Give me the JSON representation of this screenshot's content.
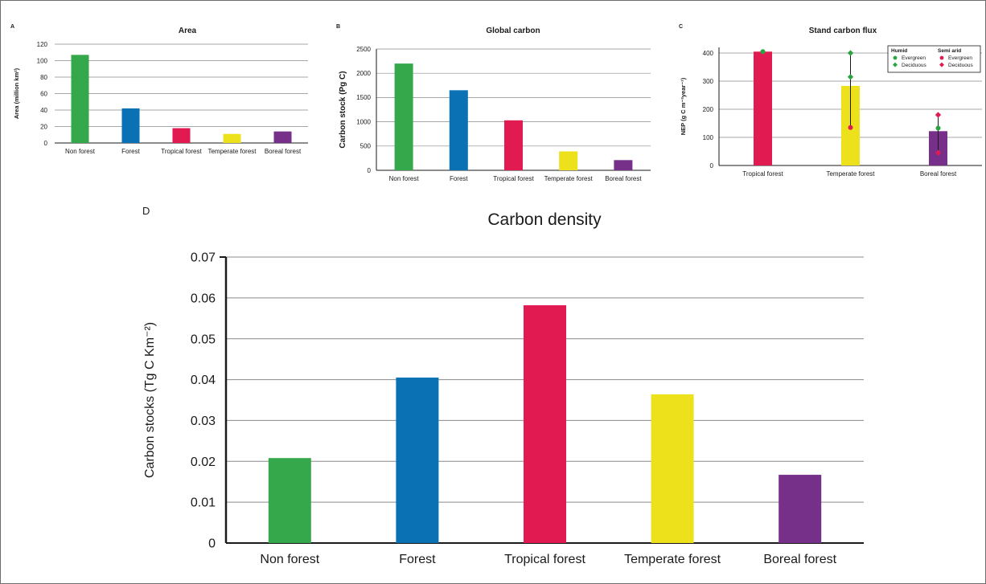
{
  "colors": {
    "non_forest": "#34a84a",
    "forest": "#0a72b4",
    "tropical": "#e21a52",
    "temperate": "#ede11c",
    "boreal": "#76308a",
    "grid": "#8a8a8a",
    "axis": "#1a1a1a",
    "whisker": "#1a1a1a",
    "humid_marker": "#2aa340",
    "semiarid_marker": "#e21a52"
  },
  "chart_data": [
    {
      "panel_label": "A",
      "type": "bar",
      "title": "Area",
      "ylabel": "Area (million km²)",
      "categories": [
        "Non forest",
        "Forest",
        "Tropical forest",
        "Temperate forest",
        "Boreal forest"
      ],
      "values": [
        107,
        42,
        18,
        11,
        14
      ],
      "ylim": [
        0,
        120
      ],
      "yticks": [
        0,
        20,
        40,
        60,
        80,
        100,
        120
      ],
      "grid": true
    },
    {
      "panel_label": "B",
      "type": "bar",
      "title": "Global carbon",
      "ylabel": "Carbon stock (Pg C)",
      "categories": [
        "Non forest",
        "Forest",
        "Tropical forest",
        "Temperate forest",
        "Boreal forest"
      ],
      "values": [
        2200,
        1650,
        1030,
        390,
        210
      ],
      "ylim": [
        0,
        2500
      ],
      "yticks": [
        0,
        500,
        1000,
        1500,
        2000,
        2500
      ],
      "grid": true
    },
    {
      "panel_label": "C",
      "type": "bar",
      "title": "Stand carbon flux",
      "ylabel": "NEP (g C m⁻²year⁻¹)",
      "categories": [
        "Tropical forest",
        "Temperate forest",
        "Boreal forest"
      ],
      "values": [
        405,
        283,
        122
      ],
      "ylim": [
        0,
        420
      ],
      "yticks": [
        0,
        100,
        200,
        300,
        400
      ],
      "grid": true,
      "ranges": [
        [
          400,
          405
        ],
        [
          135,
          400
        ],
        [
          45,
          180
        ]
      ],
      "markers": [
        {
          "category": "Tropical forest",
          "group": "humid",
          "kind": "evergreen",
          "value": 405
        },
        {
          "category": "Temperate forest",
          "group": "humid",
          "kind": "deciduous",
          "value": 400
        },
        {
          "category": "Temperate forest",
          "group": "humid",
          "kind": "deciduous",
          "value": 315
        },
        {
          "category": "Temperate forest",
          "group": "semiarid",
          "kind": "evergreen",
          "value": 135
        },
        {
          "category": "Boreal forest",
          "group": "semiarid",
          "kind": "deciduous",
          "value": 180
        },
        {
          "category": "Boreal forest",
          "group": "humid",
          "kind": "evergreen",
          "value": 133
        },
        {
          "category": "Boreal forest",
          "group": "semiarid",
          "kind": "deciduous",
          "value": 45
        }
      ],
      "legend": {
        "position": "top-right",
        "humid_title": "Humid",
        "semiarid_title": "Semi arid",
        "evergreen": "Evergreen",
        "deciduous": "Deciduous"
      }
    },
    {
      "panel_label": "D",
      "type": "bar",
      "title": "Carbon density",
      "ylabel": "Carbon stocks (Tg C Km⁻²)",
      "categories": [
        "Non forest",
        "Forest",
        "Tropical forest",
        "Temperate forest",
        "Boreal forest"
      ],
      "values": [
        0.0208,
        0.0405,
        0.0582,
        0.0364,
        0.0167
      ],
      "ylim": [
        0,
        0.07
      ],
      "yticks": [
        "0",
        "0.01",
        "0.02",
        "0.03",
        "0.04",
        "0.05",
        "0.06",
        "0.07"
      ],
      "grid": true
    }
  ]
}
